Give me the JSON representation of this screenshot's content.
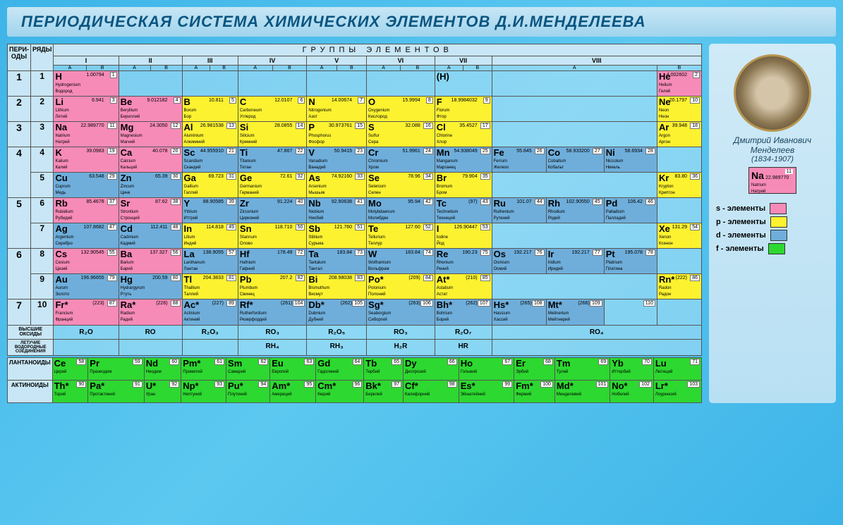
{
  "title": "ПЕРИОДИЧЕСКАЯ СИСТЕМА ХИМИЧЕСКИХ ЭЛЕМЕНТОВ Д.И.МЕНДЕЛЕЕВА",
  "groups_label": "ГРУППЫ ЭЛЕМЕНТОВ",
  "col_period": "ПЕРИ-ОДЫ",
  "col_row": "РЯДЫ",
  "roman": [
    "I",
    "II",
    "III",
    "IV",
    "V",
    "VI",
    "VII",
    "VIII"
  ],
  "ab": [
    "А",
    "В"
  ],
  "oxides_label": "ВЫСШИЕ ОКСИДЫ",
  "hydro_label": "ЛЕТУЧИЕ ВОДОРОДНЫЕ СОЕДИНЕНИЯ",
  "lan_label": "ЛАНТАНОИДЫ",
  "act_label": "АКТИНОИДЫ",
  "oxides": [
    "R₂O",
    "RO",
    "R₂O₃",
    "RO₃",
    "R₂O₅",
    "RO₃",
    "R₂O₇",
    "RO₄"
  ],
  "hydro": [
    "",
    "",
    "",
    "RH₄",
    "RH₃",
    "H₂R",
    "HR",
    ""
  ],
  "mendeleev_name": "Дмитрий Иванович Менделеев",
  "mendeleev_dates": "(1834-1907)",
  "legend_el": {
    "sym": "Na",
    "num": "11",
    "wt": "22.989770",
    "la": "Natrium",
    "ru": "Натрий"
  },
  "legend": [
    {
      "label": "s - элементы",
      "color": "#f78bb8"
    },
    {
      "label": "p - элементы",
      "color": "#fcf230"
    },
    {
      "label": "d - элементы",
      "color": "#6faedb"
    },
    {
      "label": "f - элементы",
      "color": "#2dd830"
    }
  ],
  "rows": [
    {
      "p": "1",
      "r": "1",
      "cells": [
        {
          "c": "pink",
          "s": "H",
          "n": "1",
          "w": "1.00794",
          "la": "Hydrogenium",
          "ru": "Водород",
          "sp": 2
        },
        {
          "sp": 2
        },
        {
          "sp": 2
        },
        {
          "sp": 2
        },
        {
          "sp": 2
        },
        {
          "sp": 2
        },
        {
          "c": "empty",
          "s": "(H)",
          "sp": 2
        },
        {
          "sp": 3
        },
        {
          "c": "pink",
          "s": "He",
          "n": "2",
          "w": "4.002602",
          "la": "Helium",
          "ru": "Гелий"
        }
      ]
    },
    {
      "p": "2",
      "r": "2",
      "cells": [
        {
          "c": "pink",
          "s": "Li",
          "n": "3",
          "w": "6.941",
          "la": "Lithium",
          "ru": "Литий",
          "sp": 2
        },
        {
          "c": "pink",
          "s": "Be",
          "n": "4",
          "w": "9.012182",
          "la": "Beryllium",
          "ru": "Бериллий",
          "sp": 2
        },
        {
          "c": "yellow",
          "s": "B",
          "n": "5",
          "w": "10.811",
          "la": "Borum",
          "ru": "Бор",
          "sp": 2
        },
        {
          "c": "yellow",
          "s": "C",
          "n": "6",
          "w": "12.0107",
          "la": "Carboneum",
          "ru": "Углерод",
          "sp": 2
        },
        {
          "c": "yellow",
          "s": "N",
          "n": "7",
          "w": "14.00674",
          "la": "Nitrogenium",
          "ru": "Азот",
          "sp": 2
        },
        {
          "c": "yellow",
          "s": "O",
          "n": "8",
          "w": "15.9994",
          "la": "Oxygenium",
          "ru": "Кислород",
          "sp": 2
        },
        {
          "c": "yellow",
          "s": "F",
          "n": "9",
          "w": "18.9984032",
          "la": "Florum",
          "ru": "Фтор",
          "sp": 2
        },
        {
          "sp": 3
        },
        {
          "c": "yellow",
          "s": "Ne",
          "n": "10",
          "w": "20.1797",
          "la": "Neon",
          "ru": "Неон"
        }
      ]
    },
    {
      "p": "3",
      "r": "3",
      "cells": [
        {
          "c": "pink",
          "s": "Na",
          "n": "11",
          "w": "22.989770",
          "la": "Natrium",
          "ru": "Натрий",
          "sp": 2
        },
        {
          "c": "pink",
          "s": "Mg",
          "n": "12",
          "w": "24.3050",
          "la": "Magnesium",
          "ru": "Магний",
          "sp": 2
        },
        {
          "c": "yellow",
          "s": "Al",
          "n": "13",
          "w": "26.981538",
          "la": "Aluminium",
          "ru": "Алюминий",
          "sp": 2
        },
        {
          "c": "yellow",
          "s": "Si",
          "n": "14",
          "w": "28.0855",
          "la": "Silicium",
          "ru": "Кремний",
          "sp": 2
        },
        {
          "c": "yellow",
          "s": "P",
          "n": "15",
          "w": "30.973761",
          "la": "Phosphorus",
          "ru": "Фосфор",
          "sp": 2
        },
        {
          "c": "yellow",
          "s": "S",
          "n": "16",
          "w": "32.088",
          "la": "Sulfur",
          "ru": "Сера",
          "sp": 2
        },
        {
          "c": "yellow",
          "s": "Cl",
          "n": "17",
          "w": "35.4527",
          "la": "Chlorine",
          "ru": "Хлор",
          "sp": 2
        },
        {
          "sp": 3
        },
        {
          "c": "yellow",
          "s": "Ar",
          "n": "18",
          "w": "39.948",
          "la": "Argon",
          "ru": "Аргон"
        }
      ]
    },
    {
      "p": "4",
      "r": "4",
      "ps": 2,
      "cells": [
        {
          "c": "pink",
          "s": "K",
          "n": "19",
          "w": "39.0983",
          "la": "Kalium",
          "ru": "Калий",
          "sp": 2
        },
        {
          "c": "pink",
          "s": "Ca",
          "n": "20",
          "w": "40.078",
          "la": "Calcium",
          "ru": "Кальций",
          "sp": 2
        },
        {
          "c": "blue",
          "s": "Sc",
          "n": "21",
          "w": "44.955910",
          "la": "Scandium",
          "ru": "Скандий",
          "sp": 2
        },
        {
          "c": "blue",
          "s": "Ti",
          "n": "22",
          "w": "47.867",
          "la": "Titanium",
          "ru": "Титан",
          "sp": 2
        },
        {
          "c": "blue",
          "s": "V",
          "n": "23",
          "w": "50.9415",
          "la": "Vanadium",
          "ru": "Ванадий",
          "sp": 2
        },
        {
          "c": "blue",
          "s": "Cr",
          "n": "24",
          "w": "51.9961",
          "la": "Chromium",
          "ru": "Хром",
          "sp": 2
        },
        {
          "c": "blue",
          "s": "Mn",
          "n": "25",
          "w": "54.938049",
          "la": "Manganum",
          "ru": "Марганец",
          "sp": 2
        },
        {
          "c": "blue",
          "s": "Fe",
          "n": "26",
          "w": "55.845",
          "la": "Ferrum",
          "ru": "Железо"
        },
        {
          "c": "blue",
          "s": "Co",
          "n": "27",
          "w": "58.933200",
          "la": "Cobaltum",
          "ru": "Кобальт"
        },
        {
          "c": "blue",
          "s": "Ni",
          "n": "28",
          "w": "58.6934",
          "la": "Niccolum",
          "ru": "Никель"
        },
        {
          "sp": 1
        }
      ]
    },
    {
      "r": "5",
      "cells": [
        {
          "c": "blue",
          "s": "Cu",
          "n": "29",
          "w": "63.548",
          "la": "Cuprum",
          "ru": "Медь",
          "sp": 2
        },
        {
          "c": "blue",
          "s": "Zn",
          "n": "30",
          "w": "65.39",
          "la": "Zincum",
          "ru": "Цинк",
          "sp": 2
        },
        {
          "c": "yellow",
          "s": "Ga",
          "n": "31",
          "w": "69.723",
          "la": "Gallium",
          "ru": "Галлий",
          "sp": 2
        },
        {
          "c": "yellow",
          "s": "Ge",
          "n": "32",
          "w": "72.61",
          "la": "Germanium",
          "ru": "Германий",
          "sp": 2
        },
        {
          "c": "yellow",
          "s": "As",
          "n": "33",
          "w": "74.92160",
          "la": "Arsenium",
          "ru": "Мышьяк",
          "sp": 2
        },
        {
          "c": "yellow",
          "s": "Se",
          "n": "34",
          "w": "78.96",
          "la": "Selenium",
          "ru": "Селен",
          "sp": 2
        },
        {
          "c": "yellow",
          "s": "Br",
          "n": "35",
          "w": "79.904",
          "la": "Bromum",
          "ru": "Бром",
          "sp": 2
        },
        {
          "sp": 3
        },
        {
          "c": "yellow",
          "s": "Kr",
          "n": "36",
          "w": "83.80",
          "la": "Krypton",
          "ru": "Криптон"
        }
      ]
    },
    {
      "p": "5",
      "r": "6",
      "ps": 2,
      "cells": [
        {
          "c": "pink",
          "s": "Rb",
          "n": "37",
          "w": "85.4678",
          "la": "Rubidium",
          "ru": "Рубидий",
          "sp": 2
        },
        {
          "c": "pink",
          "s": "Sr",
          "n": "38",
          "w": "87.62",
          "la": "Strontium",
          "ru": "Стронций",
          "sp": 2
        },
        {
          "c": "blue",
          "s": "Y",
          "n": "39",
          "w": "88.90585",
          "la": "Yttrium",
          "ru": "Иттрий",
          "sp": 2
        },
        {
          "c": "blue",
          "s": "Zr",
          "n": "40",
          "w": "91.224",
          "la": "Zirconium",
          "ru": "Цирконий",
          "sp": 2
        },
        {
          "c": "blue",
          "s": "Nb",
          "n": "41",
          "w": "92.90638",
          "la": "Niobium",
          "ru": "Ниобий",
          "sp": 2
        },
        {
          "c": "blue",
          "s": "Mo",
          "n": "42",
          "w": "95.94",
          "la": "Molybdaenum",
          "ru": "Молибден",
          "sp": 2
        },
        {
          "c": "blue",
          "s": "Tc",
          "n": "43",
          "w": "(97)",
          "la": "Technetium",
          "ru": "Технеций",
          "sp": 2
        },
        {
          "c": "blue",
          "s": "Ru",
          "n": "44",
          "w": "101.07",
          "la": "Ruthenium",
          "ru": "Рутений"
        },
        {
          "c": "blue",
          "s": "Rh",
          "n": "45",
          "w": "102.90550",
          "la": "Rhodium",
          "ru": "Родий"
        },
        {
          "c": "blue",
          "s": "Pd",
          "n": "46",
          "w": "106.42",
          "la": "Palladium",
          "ru": "Палладий"
        },
        {
          "sp": 1
        }
      ]
    },
    {
      "r": "7",
      "cells": [
        {
          "c": "blue",
          "s": "Ag",
          "n": "47",
          "w": "107.8682",
          "la": "Argentum",
          "ru": "Серебро",
          "sp": 2
        },
        {
          "c": "blue",
          "s": "Cd",
          "n": "48",
          "w": "112.411",
          "la": "Cadmium",
          "ru": "Кадмий",
          "sp": 2
        },
        {
          "c": "yellow",
          "s": "In",
          "n": "49",
          "w": "114.818",
          "la": "Litium",
          "ru": "Индий",
          "sp": 2
        },
        {
          "c": "yellow",
          "s": "Sn",
          "n": "50",
          "w": "118.710",
          "la": "Stannum",
          "ru": "Олово",
          "sp": 2
        },
        {
          "c": "yellow",
          "s": "Sb",
          "n": "51",
          "w": "121.760",
          "la": "Stibium",
          "ru": "Сурьма",
          "sp": 2
        },
        {
          "c": "yellow",
          "s": "Te",
          "n": "52",
          "w": "127.60",
          "la": "Tellurium",
          "ru": "Теллур",
          "sp": 2
        },
        {
          "c": "yellow",
          "s": "I",
          "n": "53",
          "w": "126.90447",
          "la": "Iodine",
          "ru": "Йод",
          "sp": 2
        },
        {
          "sp": 3
        },
        {
          "c": "yellow",
          "s": "Xe",
          "n": "54",
          "w": "131.29",
          "la": "Xenon",
          "ru": "Ксенон"
        }
      ]
    },
    {
      "p": "6",
      "r": "8",
      "ps": 2,
      "cells": [
        {
          "c": "pink",
          "s": "Cs",
          "n": "55",
          "w": "132.90545",
          "la": "Cesium",
          "ru": "Цезий",
          "sp": 2
        },
        {
          "c": "pink",
          "s": "Ba",
          "n": "56",
          "w": "137.327",
          "la": "Barium",
          "ru": "Барий",
          "sp": 2
        },
        {
          "c": "blue",
          "s": "La",
          "n": "57",
          "w": "138.9055",
          "la": "Lanthanum",
          "ru": "Лантан",
          "sp": 2
        },
        {
          "c": "blue",
          "s": "Hf",
          "n": "72",
          "w": "178.49",
          "la": "Hafnium",
          "ru": "Гафний",
          "sp": 2
        },
        {
          "c": "blue",
          "s": "Ta",
          "n": "73",
          "w": "183.84",
          "la": "Tantalum",
          "ru": "Тантал",
          "sp": 2
        },
        {
          "c": "blue",
          "s": "W",
          "n": "74",
          "w": "183.84",
          "la": "Wolframium",
          "ru": "Вольфрам",
          "sp": 2
        },
        {
          "c": "blue",
          "s": "Re",
          "n": "75",
          "w": "190.23",
          "la": "Rhenium",
          "ru": "Рений",
          "sp": 2
        },
        {
          "c": "blue",
          "s": "Os",
          "n": "76",
          "w": "192.217",
          "la": "Osmium",
          "ru": "Осмий"
        },
        {
          "c": "blue",
          "s": "Ir",
          "n": "77",
          "w": "192.217",
          "la": "Iridium",
          "ru": "Иридий"
        },
        {
          "c": "blue",
          "s": "Pt",
          "n": "78",
          "w": "195.078",
          "la": "Platinum",
          "ru": "Платина"
        },
        {
          "sp": 1
        }
      ]
    },
    {
      "r": "9",
      "cells": [
        {
          "c": "blue",
          "s": "Au",
          "n": "79",
          "w": "196.96655",
          "la": "Aurum",
          "ru": "Золото",
          "sp": 2
        },
        {
          "c": "blue",
          "s": "Hg",
          "n": "80",
          "w": "200.59",
          "la": "Hydrargyrum",
          "ru": "Ртуть",
          "sp": 2
        },
        {
          "c": "yellow",
          "s": "Tl",
          "n": "81",
          "w": "204.3833",
          "la": "Thallium",
          "ru": "Таллий",
          "sp": 2
        },
        {
          "c": "yellow",
          "s": "Pb",
          "n": "82",
          "w": "207.2",
          "la": "Plumbum",
          "ru": "Свинец",
          "sp": 2
        },
        {
          "c": "yellow",
          "s": "Bi",
          "n": "83",
          "w": "208.98038",
          "la": "Bismuthum",
          "ru": "Висмут",
          "sp": 2
        },
        {
          "c": "yellow",
          "s": "Po*",
          "n": "84",
          "w": "(209)",
          "la": "Polonium",
          "ru": "Полоний",
          "sp": 2
        },
        {
          "c": "yellow",
          "s": "At*",
          "n": "85",
          "w": "(210)",
          "la": "Astatium",
          "ru": "Астат",
          "sp": 2
        },
        {
          "sp": 3
        },
        {
          "c": "yellow",
          "s": "Rn*",
          "n": "86",
          "w": "(222)",
          "la": "Radon",
          "ru": "Радон"
        }
      ]
    },
    {
      "p": "7",
      "r": "10",
      "cells": [
        {
          "c": "pink",
          "s": "Fr*",
          "n": "87",
          "w": "(223)",
          "la": "Francium",
          "ru": "Франций",
          "sp": 2
        },
        {
          "c": "pink",
          "s": "Ra*",
          "n": "88",
          "w": "(226)",
          "la": "Radium",
          "ru": "Радий",
          "sp": 2
        },
        {
          "c": "blue",
          "s": "Ac*",
          "n": "89",
          "w": "(227)",
          "la": "Actinium",
          "ru": "Актиний",
          "sp": 2
        },
        {
          "c": "blue",
          "s": "Rf*",
          "n": "104",
          "w": "(261)",
          "la": "Rutherfordium",
          "ru": "Резерфордий",
          "sp": 2
        },
        {
          "c": "blue",
          "s": "Db*",
          "n": "105",
          "w": "(262)",
          "la": "Dubnium",
          "ru": "Дубний",
          "sp": 2
        },
        {
          "c": "blue",
          "s": "Sg*",
          "n": "106",
          "w": "(263)",
          "la": "Seaborgium",
          "ru": "Сиборгий",
          "sp": 2
        },
        {
          "c": "blue",
          "s": "Bh*",
          "n": "107",
          "w": "(262)",
          "la": "Bohrium",
          "ru": "Борий",
          "sp": 2
        },
        {
          "c": "blue",
          "s": "Hs*",
          "n": "108",
          "w": "(265)",
          "la": "Hassium",
          "ru": "Хассий"
        },
        {
          "c": "blue",
          "s": "Mt*",
          "n": "109",
          "w": "(266)",
          "la": "Meitnerium",
          "ru": "Мейтнерий"
        },
        {
          "c": "empty",
          "n": "110",
          "sp": 1
        },
        {
          "sp": 1
        }
      ]
    }
  ],
  "lanthanides": [
    {
      "s": "Ce",
      "n": "58",
      "ru": "Церий"
    },
    {
      "s": "Pr",
      "n": "59",
      "ru": "Празеодим"
    },
    {
      "s": "Nd",
      "n": "60",
      "ru": "Неодим"
    },
    {
      "s": "Pm*",
      "n": "61",
      "ru": "Прометий"
    },
    {
      "s": "Sm",
      "n": "62",
      "ru": "Самарий"
    },
    {
      "s": "Eu",
      "n": "63",
      "ru": "Европий"
    },
    {
      "s": "Gd",
      "n": "64",
      "ru": "Гадолиний"
    },
    {
      "s": "Tb",
      "n": "65",
      "ru": "Тербий"
    },
    {
      "s": "Dy",
      "n": "66",
      "ru": "Диспрозий"
    },
    {
      "s": "Ho",
      "n": "67",
      "ru": "Гольмий"
    },
    {
      "s": "Er",
      "n": "68",
      "ru": "Эрбий"
    },
    {
      "s": "Tm",
      "n": "69",
      "ru": "Тулий"
    },
    {
      "s": "Yb",
      "n": "70",
      "ru": "Иттербий"
    },
    {
      "s": "Lu",
      "n": "71",
      "ru": "Лютеций"
    }
  ],
  "actinides": [
    {
      "s": "Th*",
      "n": "90",
      "ru": "Торий"
    },
    {
      "s": "Pa*",
      "n": "91",
      "ru": "Протактиний"
    },
    {
      "s": "U*",
      "n": "92",
      "ru": "Уран"
    },
    {
      "s": "Np*",
      "n": "93",
      "ru": "Нептуний"
    },
    {
      "s": "Pu*",
      "n": "94",
      "ru": "Плутоний"
    },
    {
      "s": "Am*",
      "n": "95",
      "ru": "Америций"
    },
    {
      "s": "Cm*",
      "n": "96",
      "ru": "Кюрий"
    },
    {
      "s": "Bk*",
      "n": "97",
      "ru": "Берклий"
    },
    {
      "s": "Cf*",
      "n": "98",
      "ru": "Калифорний"
    },
    {
      "s": "Es*",
      "n": "99",
      "ru": "Эйнштейний"
    },
    {
      "s": "Fm*",
      "n": "100",
      "ru": "Фермий"
    },
    {
      "s": "Md*",
      "n": "101",
      "ru": "Менделевий"
    },
    {
      "s": "No*",
      "n": "102",
      "ru": "Нобелий"
    },
    {
      "s": "Lr*",
      "n": "103",
      "ru": "Лоуренсий"
    }
  ]
}
